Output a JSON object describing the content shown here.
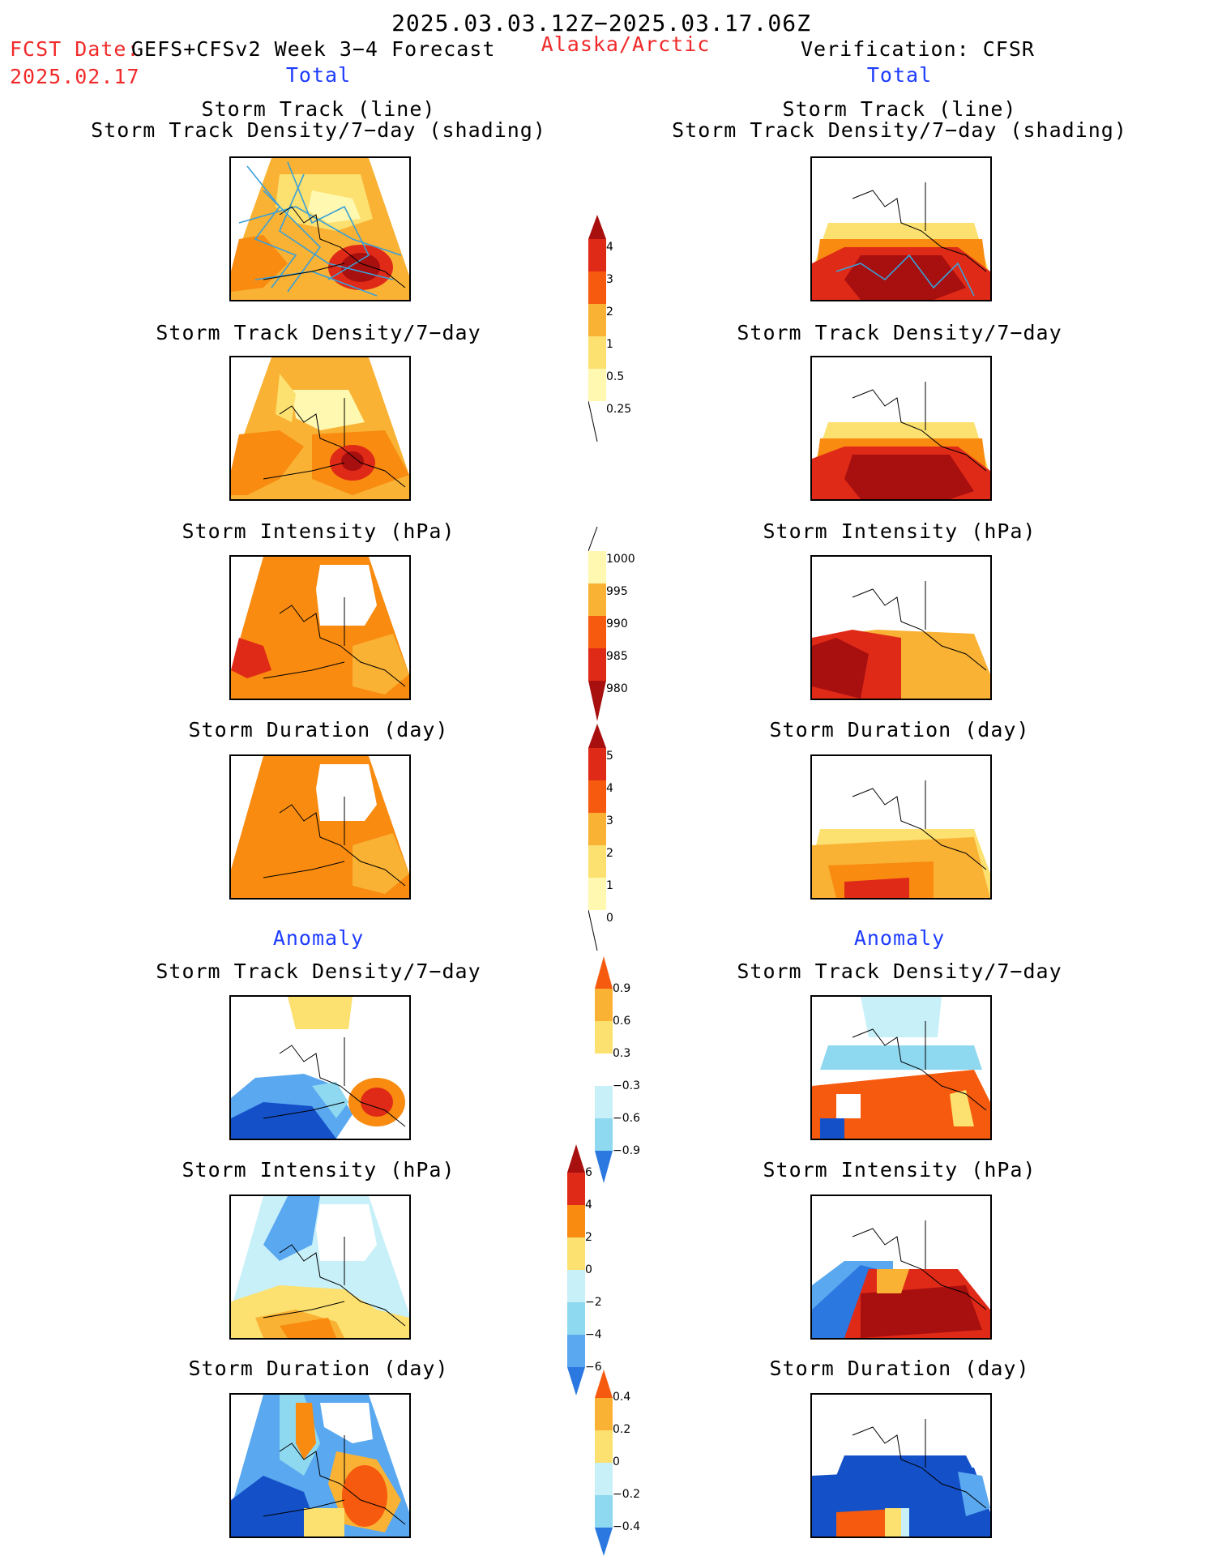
{
  "header": {
    "date_range": "2025.03.03.12Z−2025.03.17.06Z",
    "fcst_label": "FCST Date:",
    "fcst_date": "2025.02.17",
    "forecast_title": "GEFS+CFSv2 Week 3−4 Forecast",
    "region": "Alaska/Arctic",
    "verification": "Verification: CFSR"
  },
  "sections": {
    "total_left": "Total",
    "total_right": "Total",
    "anomaly_left": "Anomaly",
    "anomaly_right": "Anomaly"
  },
  "titles": {
    "track_line": "Storm Track (line)",
    "track_density_shading": "Storm Track Density/7−day (shading)",
    "track_density": "Storm Track Density/7−day",
    "intensity": "Storm Intensity (hPa)",
    "duration": "Storm Duration (day)"
  },
  "colorbars": {
    "density_total": [
      "4",
      "3",
      "2",
      "1",
      "0.5",
      "0.25"
    ],
    "intensity_total": [
      "1000",
      "995",
      "990",
      "985",
      "980"
    ],
    "duration_total": [
      "5",
      "4",
      "3",
      "2",
      "1",
      "0"
    ],
    "density_anomaly": [
      "0.9",
      "0.6",
      "0.3",
      "−0.3",
      "−0.6",
      "−0.9"
    ],
    "intensity_anomaly": [
      "6",
      "4",
      "2",
      "0",
      "−2",
      "−4",
      "−6"
    ],
    "duration_anomaly": [
      "0.4",
      "0.2",
      "0",
      "−0.2",
      "−0.4"
    ]
  },
  "colors": {
    "warm": [
      "#fff8b0",
      "#fce070",
      "#f9b234",
      "#f88b10",
      "#f65a0e",
      "#e02a18",
      "#a80f0f"
    ],
    "cool": [
      "#c8f0f8",
      "#8ed8f0",
      "#5aa8f0",
      "#2a78e0",
      "#1450c8"
    ],
    "track_line": "#3aa0d8"
  }
}
